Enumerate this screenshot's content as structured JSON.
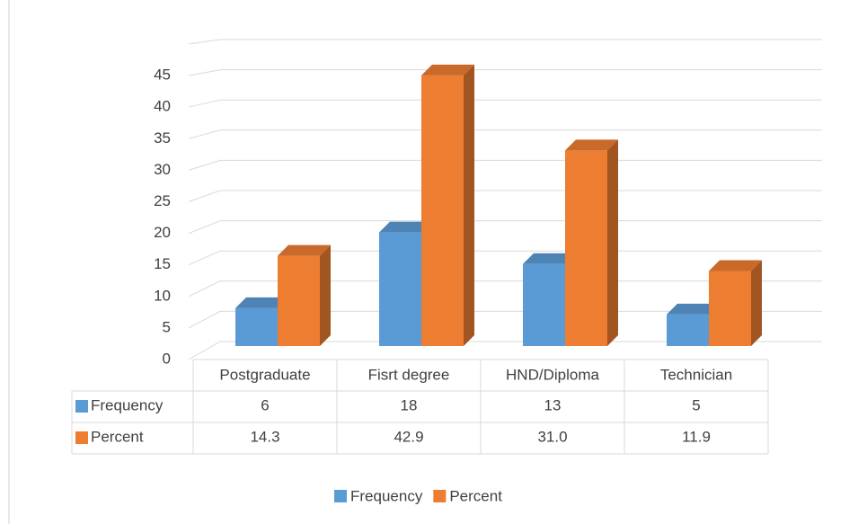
{
  "chart_data": {
    "type": "bar3d",
    "categories": [
      "Postgraduate",
      "Fisrt degree",
      "HND/Diploma",
      "Technician"
    ],
    "series": [
      {
        "name": "Frequency",
        "color": "#5b9bd5",
        "values": [
          6,
          18,
          13,
          5
        ]
      },
      {
        "name": "Percent",
        "color": "#ed7d31",
        "values": [
          14.3,
          42.9,
          31.0,
          11.9
        ],
        "value_labels": [
          "14.3",
          "42.9",
          "31.0",
          "11.9"
        ]
      }
    ],
    "ylim": [
      0,
      50
    ],
    "yticks": [
      0,
      5,
      10,
      15,
      20,
      25,
      30,
      35,
      40,
      45
    ],
    "grid": true,
    "legend": "bottom"
  }
}
